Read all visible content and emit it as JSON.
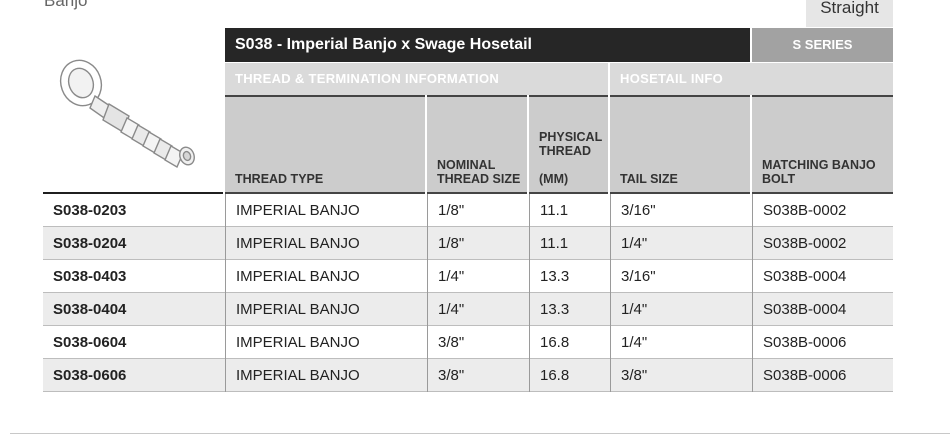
{
  "top": {
    "cut_text": "Banjo",
    "tab_label": "Straight"
  },
  "table": {
    "title": "S038 - Imperial Banjo x Swage Hosetail",
    "series": "S SERIES",
    "group_headers": [
      "THREAD & TERMINATION INFORMATION",
      "HOSETAIL INFO"
    ],
    "columns": [
      "THREAD TYPE",
      "NOMINAL\nTHREAD SIZE",
      "PHYSICAL\nTHREAD\n\n(MM)",
      "TAIL SIZE",
      "MATCHING BANJO\nBOLT"
    ],
    "rows": [
      {
        "part": "S038-0203",
        "thread_type": "IMPERIAL BANJO",
        "nominal": "1/8\"",
        "physical": "11.1",
        "tail": "3/16\"",
        "bolt": "S038B-0002"
      },
      {
        "part": "S038-0204",
        "thread_type": "IMPERIAL BANJO",
        "nominal": "1/8\"",
        "physical": "11.1",
        "tail": "1/4\"",
        "bolt": "S038B-0002"
      },
      {
        "part": "S038-0403",
        "thread_type": "IMPERIAL BANJO",
        "nominal": "1/4\"",
        "physical": "13.3",
        "tail": "3/16\"",
        "bolt": "S038B-0004"
      },
      {
        "part": "S038-0404",
        "thread_type": "IMPERIAL BANJO",
        "nominal": "1/4\"",
        "physical": "13.3",
        "tail": "1/4\"",
        "bolt": "S038B-0004"
      },
      {
        "part": "S038-0604",
        "thread_type": "IMPERIAL BANJO",
        "nominal": "3/8\"",
        "physical": "16.8",
        "tail": "1/4\"",
        "bolt": "S038B-0006"
      },
      {
        "part": "S038-0606",
        "thread_type": "IMPERIAL BANJO",
        "nominal": "3/8\"",
        "physical": "16.8",
        "tail": "3/8\"",
        "bolt": "S038B-0006"
      }
    ]
  },
  "image": {
    "icon": "banjo-hosetail-fitting-icon"
  }
}
